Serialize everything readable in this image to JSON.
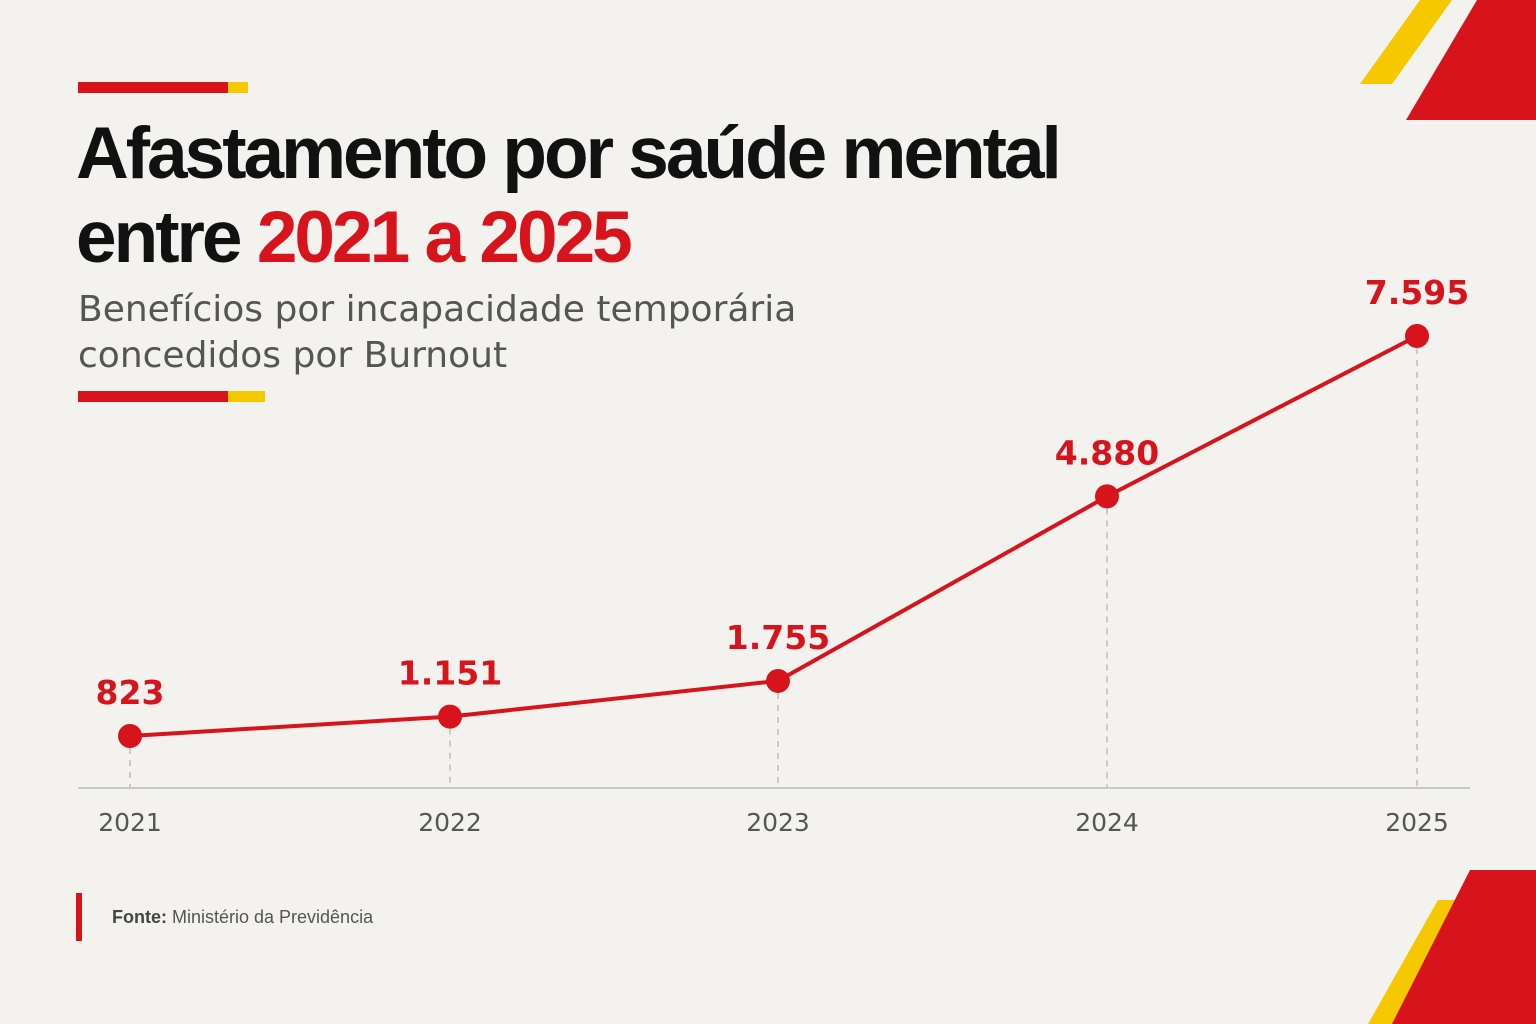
{
  "header": {
    "title_line1": "Afastamento por saúde mental",
    "title_line2_prefix": "entre",
    "title_line2_highlight": "2021 a 2025",
    "subtitle_line1": "Benefícios por incapacidade temporária",
    "subtitle_line2": "concedidos por Burnout"
  },
  "source": {
    "label": "Fonte:",
    "text": "Ministério da Previdência"
  },
  "colors": {
    "accent_red": "#d7131c",
    "accent_yellow": "#f5c800",
    "background": "#f3f2ef",
    "title_text": "#111111",
    "muted_text": "#555555"
  },
  "chart_data": {
    "type": "line",
    "title": "Afastamento por saúde mental entre 2021 a 2025",
    "subtitle": "Benefícios por incapacidade temporária concedidos por Burnout",
    "xlabel": "",
    "ylabel": "",
    "grid": false,
    "legend": "none",
    "categories": [
      "2021",
      "2022",
      "2023",
      "2024",
      "2025"
    ],
    "series": [
      {
        "values": [
          823,
          1151,
          1755,
          4880,
          7595
        ],
        "labels": [
          "823",
          "1.151",
          "1.755",
          "4.880",
          "7.595"
        ],
        "color": "#d7131c"
      }
    ]
  }
}
